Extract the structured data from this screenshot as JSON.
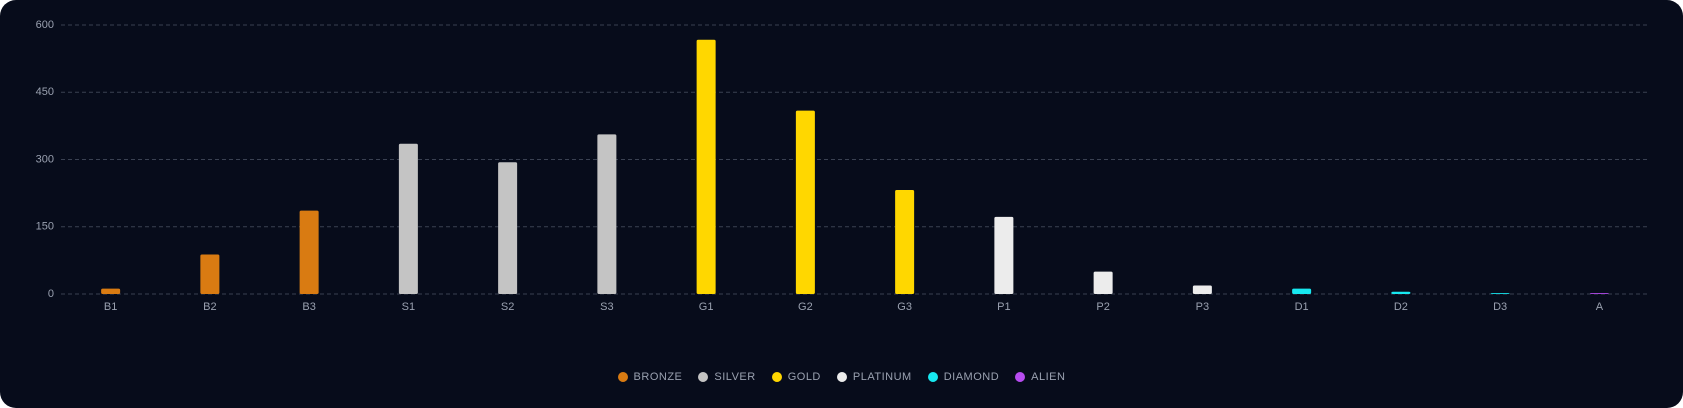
{
  "chart_data": {
    "type": "bar",
    "categories": [
      "B1",
      "B2",
      "B3",
      "S1",
      "S2",
      "S3",
      "G1",
      "G2",
      "G3",
      "P1",
      "P2",
      "P3",
      "D1",
      "D2",
      "D3",
      "A"
    ],
    "series": [
      {
        "name": "BRONZE",
        "color": "#d97b12",
        "values": [
          12,
          88,
          186,
          null,
          null,
          null,
          null,
          null,
          null,
          null,
          null,
          null,
          null,
          null,
          null,
          null
        ]
      },
      {
        "name": "SILVER",
        "color": "#c4c4c4",
        "values": [
          null,
          null,
          null,
          335,
          294,
          356,
          null,
          null,
          null,
          null,
          null,
          null,
          null,
          null,
          null,
          null
        ]
      },
      {
        "name": "GOLD",
        "color": "#ffd700",
        "values": [
          null,
          null,
          null,
          null,
          null,
          null,
          567,
          409,
          232,
          null,
          null,
          null,
          null,
          null,
          null,
          null
        ]
      },
      {
        "name": "PLATINUM",
        "color": "#ececec",
        "values": [
          null,
          null,
          null,
          null,
          null,
          null,
          null,
          null,
          null,
          172,
          50,
          19,
          null,
          null,
          null,
          null
        ]
      },
      {
        "name": "DIAMOND",
        "color": "#17e8f0",
        "values": [
          null,
          null,
          null,
          null,
          null,
          null,
          null,
          null,
          null,
          null,
          null,
          null,
          12,
          5,
          2,
          null
        ]
      },
      {
        "name": "ALIEN",
        "color": "#b74cf0",
        "values": [
          null,
          null,
          null,
          null,
          null,
          null,
          null,
          null,
          null,
          null,
          null,
          null,
          null,
          null,
          null,
          2
        ]
      }
    ],
    "ylim": [
      0,
      600
    ],
    "yticks": [
      0,
      150,
      300,
      450,
      600
    ],
    "grid": true
  }
}
